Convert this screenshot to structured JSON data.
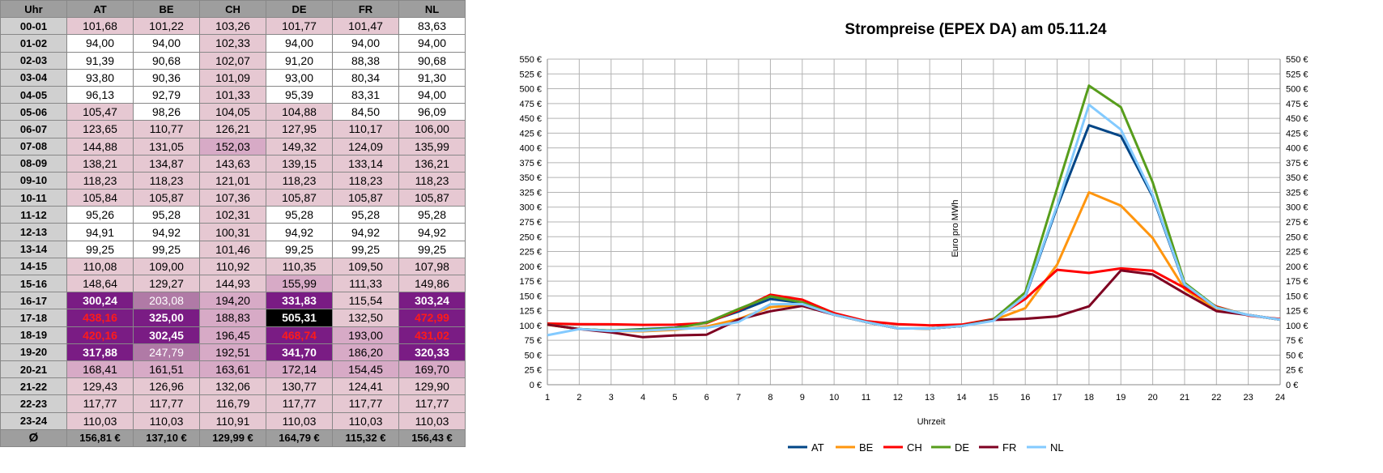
{
  "table": {
    "header": [
      "Uhr",
      "AT",
      "BE",
      "CH",
      "DE",
      "FR",
      "NL"
    ],
    "rows": [
      {
        "hour": "00-01",
        "cells": [
          "101,68",
          "101,22",
          "103,26",
          "101,77",
          "101,47",
          "83,63"
        ]
      },
      {
        "hour": "01-02",
        "cells": [
          "94,00",
          "94,00",
          "102,33",
          "94,00",
          "94,00",
          "94,00"
        ]
      },
      {
        "hour": "02-03",
        "cells": [
          "91,39",
          "90,68",
          "102,07",
          "91,20",
          "88,38",
          "90,68"
        ]
      },
      {
        "hour": "03-04",
        "cells": [
          "93,80",
          "90,36",
          "101,09",
          "93,00",
          "80,34",
          "91,30"
        ]
      },
      {
        "hour": "04-05",
        "cells": [
          "96,13",
          "92,79",
          "101,33",
          "95,39",
          "83,31",
          "94,00"
        ]
      },
      {
        "hour": "05-06",
        "cells": [
          "105,47",
          "98,26",
          "104,05",
          "104,88",
          "84,50",
          "96,09"
        ]
      },
      {
        "hour": "06-07",
        "cells": [
          "123,65",
          "110,77",
          "126,21",
          "127,95",
          "110,17",
          "106,00"
        ]
      },
      {
        "hour": "07-08",
        "cells": [
          "144,88",
          "131,05",
          "152,03",
          "149,32",
          "124,09",
          "135,99"
        ]
      },
      {
        "hour": "08-09",
        "cells": [
          "138,21",
          "134,87",
          "143,63",
          "139,15",
          "133,14",
          "136,21"
        ]
      },
      {
        "hour": "09-10",
        "cells": [
          "118,23",
          "118,23",
          "121,01",
          "118,23",
          "118,23",
          "118,23"
        ]
      },
      {
        "hour": "10-11",
        "cells": [
          "105,84",
          "105,87",
          "107,36",
          "105,87",
          "105,87",
          "105,87"
        ]
      },
      {
        "hour": "11-12",
        "cells": [
          "95,26",
          "95,28",
          "102,31",
          "95,28",
          "95,28",
          "95,28"
        ]
      },
      {
        "hour": "12-13",
        "cells": [
          "94,91",
          "94,92",
          "100,31",
          "94,92",
          "94,92",
          "94,92"
        ]
      },
      {
        "hour": "13-14",
        "cells": [
          "99,25",
          "99,25",
          "101,46",
          "99,25",
          "99,25",
          "99,25"
        ]
      },
      {
        "hour": "14-15",
        "cells": [
          "110,08",
          "109,00",
          "110,92",
          "110,35",
          "109,50",
          "107,98"
        ]
      },
      {
        "hour": "15-16",
        "cells": [
          "148,64",
          "129,27",
          "144,93",
          "155,99",
          "111,33",
          "149,86"
        ]
      },
      {
        "hour": "16-17",
        "cells": [
          "300,24",
          "203,08",
          "194,20",
          "331,83",
          "115,54",
          "303,24"
        ]
      },
      {
        "hour": "17-18",
        "cells": [
          "438,16",
          "325,00",
          "188,83",
          "505,31",
          "132,50",
          "472,99"
        ]
      },
      {
        "hour": "18-19",
        "cells": [
          "420,16",
          "302,45",
          "196,45",
          "468,74",
          "193,00",
          "431,02"
        ]
      },
      {
        "hour": "19-20",
        "cells": [
          "317,88",
          "247,79",
          "192,51",
          "341,70",
          "186,20",
          "320,33"
        ]
      },
      {
        "hour": "20-21",
        "cells": [
          "168,41",
          "161,51",
          "163,61",
          "172,14",
          "154,45",
          "169,70"
        ]
      },
      {
        "hour": "21-22",
        "cells": [
          "129,43",
          "126,96",
          "132,06",
          "130,77",
          "124,41",
          "129,90"
        ]
      },
      {
        "hour": "22-23",
        "cells": [
          "117,77",
          "117,77",
          "116,79",
          "117,77",
          "117,77",
          "117,77"
        ]
      },
      {
        "hour": "23-24",
        "cells": [
          "110,03",
          "110,03",
          "110,91",
          "110,03",
          "110,03",
          "110,03"
        ]
      }
    ],
    "avg_row": {
      "hour": "Ø",
      "cells": [
        "156,81 €",
        "137,10 €",
        "129,99 €",
        "164,79 €",
        "115,32 €",
        "156,43 €"
      ]
    },
    "heat_colors": {
      "white": "#ffffff",
      "light": "#e6c8d2",
      "medium": "#d7aac6",
      "dark": "#b07aa6",
      "purple": "#7a1c84",
      "black": "#000000",
      "red_text": "#ff1a1a"
    }
  },
  "chart_data": {
    "type": "line",
    "title": "Strompreise (EPEX DA) am 05.11.24",
    "xlabel": "Uhrzeit",
    "ylabel": "Euro pro MWh",
    "x": [
      1,
      2,
      3,
      4,
      5,
      6,
      7,
      8,
      9,
      10,
      11,
      12,
      13,
      14,
      15,
      16,
      17,
      18,
      19,
      20,
      21,
      22,
      23,
      24
    ],
    "ylim": [
      0,
      550
    ],
    "y_ticks": [
      "0 €",
      "25 €",
      "50 €",
      "75 €",
      "100 €",
      "125 €",
      "150 €",
      "175 €",
      "200 €",
      "225 €",
      "250 €",
      "275 €",
      "300 €",
      "325 €",
      "350 €",
      "375 €",
      "400 €",
      "425 €",
      "450 €",
      "475 €",
      "500 €",
      "525 €",
      "550 €"
    ],
    "y_tick_values": [
      0,
      25,
      50,
      75,
      100,
      125,
      150,
      175,
      200,
      225,
      250,
      275,
      300,
      325,
      350,
      375,
      400,
      425,
      450,
      475,
      500,
      525,
      550
    ],
    "grid": true,
    "legend_position": "bottom",
    "series": [
      {
        "name": "AT",
        "color": "#004586",
        "values": [
          101.68,
          94.0,
          91.39,
          93.8,
          96.13,
          105.47,
          123.65,
          144.88,
          138.21,
          118.23,
          105.84,
          95.26,
          94.91,
          99.25,
          110.08,
          148.64,
          300.24,
          438.16,
          420.16,
          317.88,
          168.41,
          129.43,
          117.77,
          110.03
        ]
      },
      {
        "name": "BE",
        "color": "#ff950e",
        "values": [
          101.22,
          94.0,
          90.68,
          90.36,
          92.79,
          98.26,
          110.77,
          131.05,
          134.87,
          118.23,
          105.87,
          95.28,
          94.92,
          99.25,
          109.0,
          129.27,
          203.08,
          325.0,
          302.45,
          247.79,
          161.51,
          126.96,
          117.77,
          110.03
        ]
      },
      {
        "name": "CH",
        "color": "#ff0000",
        "values": [
          103.26,
          102.33,
          102.07,
          101.09,
          101.33,
          104.05,
          126.21,
          152.03,
          143.63,
          121.01,
          107.36,
          102.31,
          100.31,
          101.46,
          110.92,
          144.93,
          194.2,
          188.83,
          196.45,
          192.51,
          163.61,
          132.06,
          116.79,
          110.91
        ]
      },
      {
        "name": "DE",
        "color": "#579d1c",
        "values": [
          101.77,
          94.0,
          91.2,
          93.0,
          95.39,
          104.88,
          127.95,
          149.32,
          139.15,
          118.23,
          105.87,
          95.28,
          94.92,
          99.25,
          110.35,
          155.99,
          331.83,
          505.31,
          468.74,
          341.7,
          172.14,
          130.77,
          117.77,
          110.03
        ]
      },
      {
        "name": "FR",
        "color": "#7e0021",
        "values": [
          101.47,
          94.0,
          88.38,
          80.34,
          83.31,
          84.5,
          110.17,
          124.09,
          133.14,
          118.23,
          105.87,
          95.28,
          94.92,
          99.25,
          109.5,
          111.33,
          115.54,
          132.5,
          193.0,
          186.2,
          154.45,
          124.41,
          117.77,
          110.03
        ]
      },
      {
        "name": "NL",
        "color": "#83caff",
        "values": [
          83.63,
          94.0,
          90.68,
          91.3,
          94.0,
          96.09,
          106.0,
          135.99,
          136.21,
          118.23,
          105.87,
          95.28,
          94.92,
          99.25,
          107.98,
          149.86,
          303.24,
          472.99,
          431.02,
          320.33,
          169.7,
          129.9,
          117.77,
          110.03
        ]
      }
    ]
  }
}
